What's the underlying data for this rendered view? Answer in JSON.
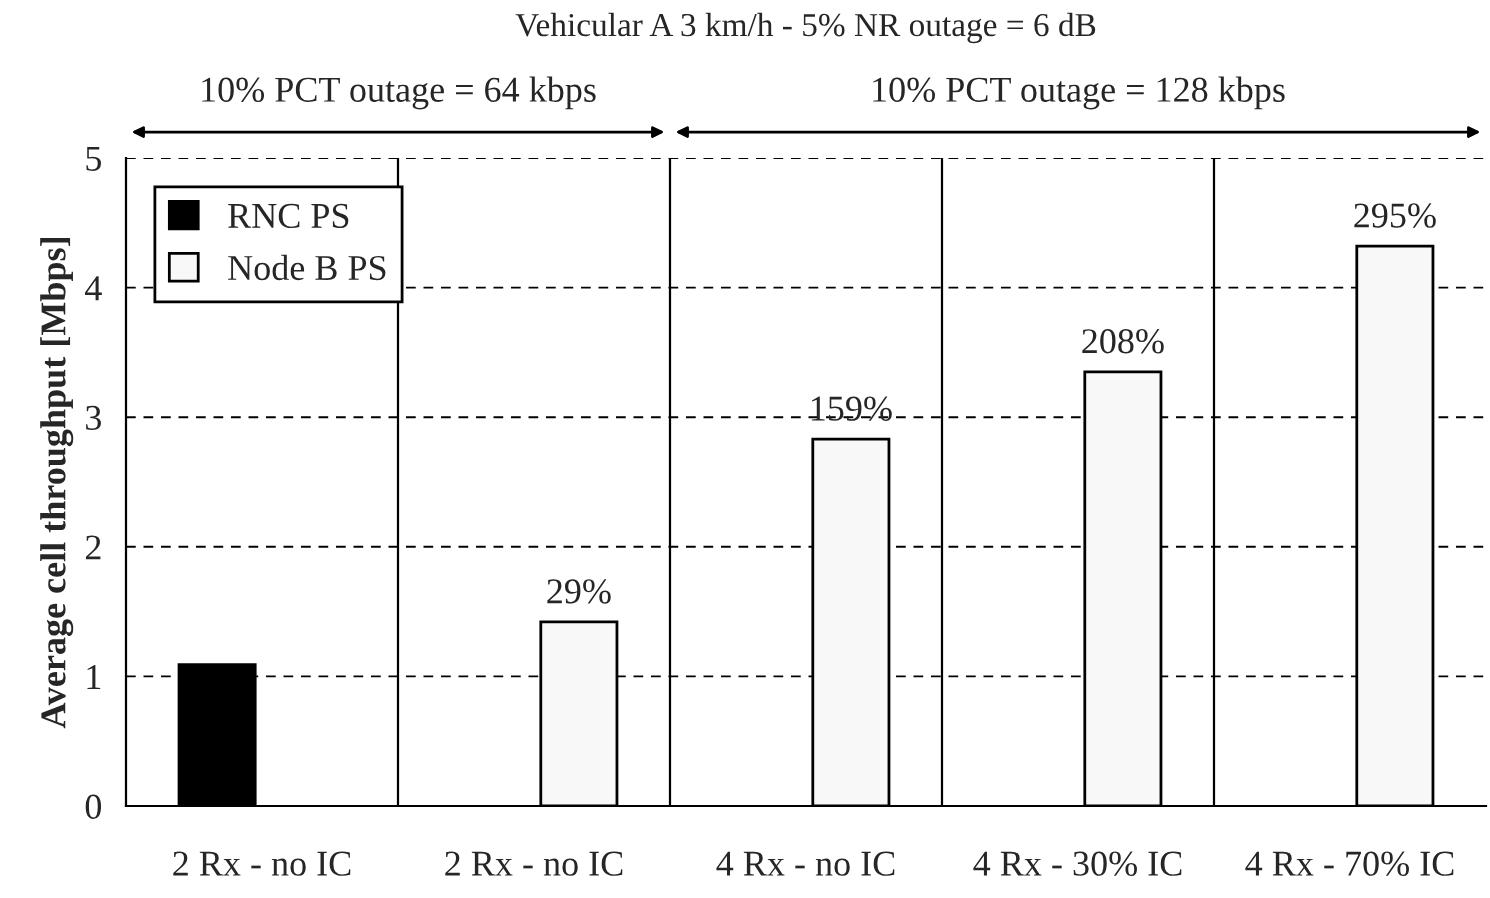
{
  "chart_data": {
    "type": "bar",
    "title": "Vehicular A 3 km/h - 5% NR outage = 6 dB",
    "ylabel": "Average cell throughput [Mbps]",
    "categories": [
      "2 Rx - no IC",
      "2 Rx - no IC",
      "4 Rx - no IC",
      "4 Rx - 30% IC",
      "4 Rx - 70% IC"
    ],
    "series": [
      {
        "name": "RNC PS",
        "color": "#000000",
        "values": [
          1.09,
          null,
          null,
          null,
          null
        ]
      },
      {
        "name": "Node B PS",
        "color": "#f8f8f8",
        "values": [
          null,
          1.42,
          2.83,
          3.35,
          4.32
        ]
      }
    ],
    "annotations": [
      "10% PCT outage = 64 kbps",
      "10% PCT outage = 128 kbps",
      {
        "text": "29%",
        "y": 1.42
      },
      {
        "text": "159%",
        "x": "4 Rx - no IC",
        "y": 2.83
      },
      {
        "text": "208%",
        "x": "4 Rx - 30% IC",
        "y": 3.35
      },
      {
        "text": "295%",
        "x": "4 Rx - 70% IC",
        "y": 4.32
      }
    ],
    "ylim": [
      0,
      5
    ],
    "yticks": [
      0,
      1,
      2,
      3,
      4,
      5
    ],
    "grid": "y",
    "legend": "top left"
  }
}
